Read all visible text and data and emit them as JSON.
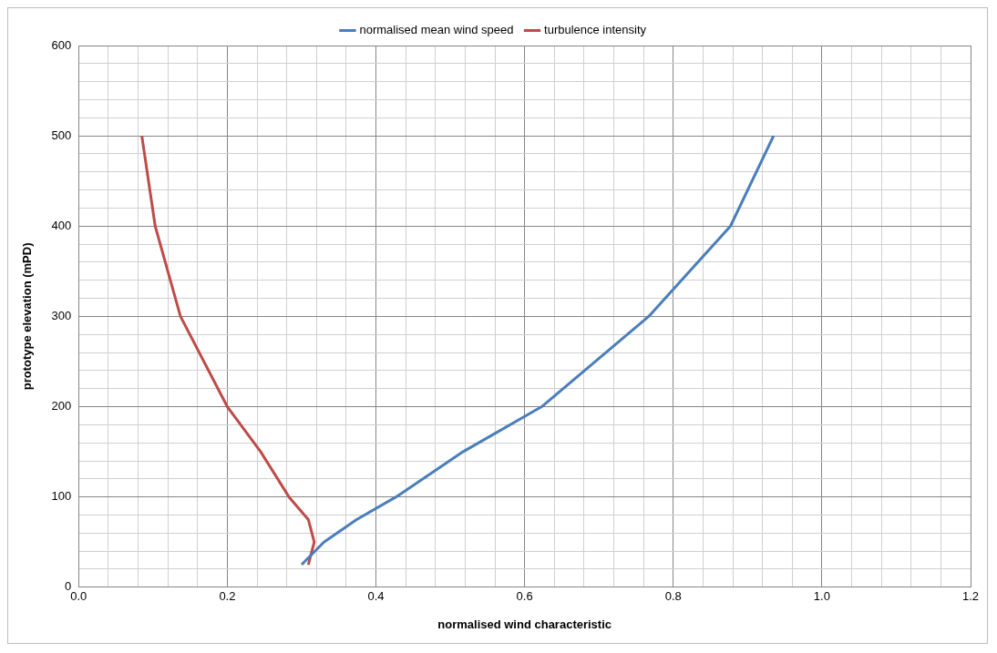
{
  "chart_data": {
    "type": "line",
    "xlabel": "normalised wind characteristic",
    "ylabel": "prototype elevation (mPD)",
    "series": [
      {
        "name": "normalised mean wind speed",
        "color": "#4a7ebb",
        "x": [
          0.3,
          0.33,
          0.374,
          0.427,
          0.517,
          0.623,
          0.767,
          0.877,
          0.935
        ],
        "values": [
          25,
          50,
          75,
          100,
          150,
          200,
          300,
          400,
          500
        ]
      },
      {
        "name": "turbulence intensity",
        "color": "#be4b48",
        "x": [
          0.309,
          0.317,
          0.309,
          0.283,
          0.245,
          0.2,
          0.137,
          0.103,
          0.085
        ],
        "values": [
          25,
          50,
          75,
          100,
          150,
          200,
          300,
          400,
          500
        ]
      }
    ],
    "xlim": [
      0,
      1.2
    ],
    "xticks": [
      {
        "value": 0,
        "label": "0.0"
      },
      {
        "value": 0.04,
        "label": null
      },
      {
        "value": 0.08,
        "label": null
      },
      {
        "value": 0.12,
        "label": null
      },
      {
        "value": 0.16,
        "label": null
      },
      {
        "value": 0.2,
        "label": "0.2"
      },
      {
        "value": 0.24,
        "label": null
      },
      {
        "value": 0.28,
        "label": null
      },
      {
        "value": 0.32,
        "label": null
      },
      {
        "value": 0.36,
        "label": null
      },
      {
        "value": 0.4,
        "label": "0.4"
      },
      {
        "value": 0.44,
        "label": null
      },
      {
        "value": 0.48,
        "label": null
      },
      {
        "value": 0.52,
        "label": null
      },
      {
        "value": 0.56,
        "label": null
      },
      {
        "value": 0.6,
        "label": "0.6"
      },
      {
        "value": 0.64,
        "label": null
      },
      {
        "value": 0.68,
        "label": null
      },
      {
        "value": 0.72,
        "label": null
      },
      {
        "value": 0.76,
        "label": null
      },
      {
        "value": 0.8,
        "label": "0.8"
      },
      {
        "value": 0.84,
        "label": null
      },
      {
        "value": 0.88,
        "label": null
      },
      {
        "value": 0.92,
        "label": null
      },
      {
        "value": 0.96,
        "label": null
      },
      {
        "value": 1.0,
        "label": "1.0"
      },
      {
        "value": 1.04,
        "label": null
      },
      {
        "value": 1.08,
        "label": null
      },
      {
        "value": 1.12,
        "label": null
      },
      {
        "value": 1.16,
        "label": null
      },
      {
        "value": 1.2,
        "label": "1.2"
      }
    ],
    "ylim": [
      0,
      600
    ],
    "yticks": [
      0,
      {
        "value": 20,
        "label": null
      },
      {
        "value": 40,
        "label": null
      },
      {
        "value": 60,
        "label": null
      },
      {
        "value": 80,
        "label": null
      },
      100,
      {
        "value": 120,
        "label": null
      },
      {
        "value": 140,
        "label": null
      },
      {
        "value": 160,
        "label": null
      },
      {
        "value": 180,
        "label": null
      },
      200,
      {
        "value": 220,
        "label": null
      },
      {
        "value": 240,
        "label": null
      },
      {
        "value": 260,
        "label": null
      },
      {
        "value": 280,
        "label": null
      },
      300,
      {
        "value": 320,
        "label": null
      },
      {
        "value": 340,
        "label": null
      },
      {
        "value": 360,
        "label": null
      },
      {
        "value": 380,
        "label": null
      },
      400,
      {
        "value": 420,
        "label": null
      },
      {
        "value": 440,
        "label": null
      },
      {
        "value": 460,
        "label": null
      },
      {
        "value": 480,
        "label": null
      },
      500,
      {
        "value": 520,
        "label": null
      },
      {
        "value": 540,
        "label": null
      },
      {
        "value": 560,
        "label": null
      },
      {
        "value": 580,
        "label": null
      },
      600
    ],
    "grid": true,
    "legend": "top",
    "marker": "none",
    "line_style": "solid"
  }
}
